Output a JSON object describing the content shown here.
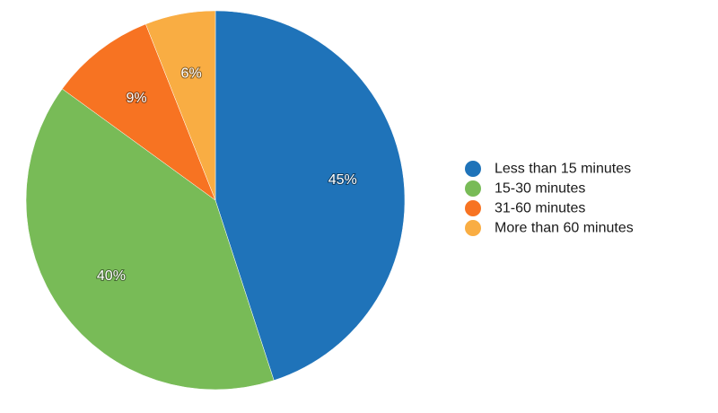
{
  "chart_data": {
    "type": "pie",
    "categories": [
      "Less than 15 minutes",
      "15-30 minutes",
      "31-60 minutes",
      "More than 60 minutes"
    ],
    "values": [
      45,
      40,
      9,
      6
    ],
    "labels": [
      "45%",
      "40%",
      "9%",
      "6%"
    ],
    "colors": [
      "#1f73b9",
      "#78bb57",
      "#f77322",
      "#f9ad43"
    ],
    "legend_placement": "right",
    "start_angle": "12 o'clock",
    "direction": "clockwise"
  }
}
